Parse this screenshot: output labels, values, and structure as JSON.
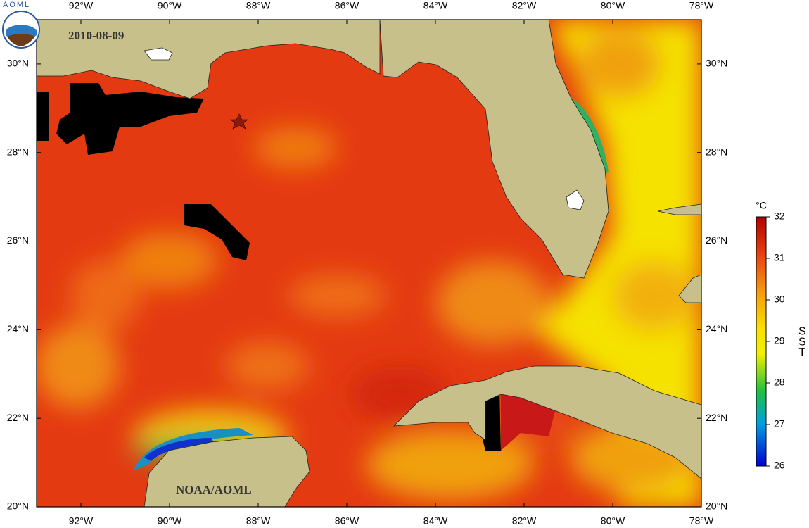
{
  "map": {
    "logo": "AOML",
    "title": "2010-08-09",
    "credit": "NOAA/AOML",
    "xlim": [
      -93,
      -78
    ],
    "ylim": [
      20,
      31
    ],
    "lon_ticks": [
      {
        "value": -92,
        "label": "92°W"
      },
      {
        "value": -90,
        "label": "90°W"
      },
      {
        "value": -88,
        "label": "88°W"
      },
      {
        "value": -86,
        "label": "86°W"
      },
      {
        "value": -84,
        "label": "84°W"
      },
      {
        "value": -82,
        "label": "82°W"
      },
      {
        "value": -80,
        "label": "80°W"
      },
      {
        "value": -78,
        "label": "78°W"
      }
    ],
    "lat_ticks": [
      {
        "value": 20,
        "label": "20°N"
      },
      {
        "value": 22,
        "label": "22°N"
      },
      {
        "value": 24,
        "label": "24°N"
      },
      {
        "value": 26,
        "label": "26°N"
      },
      {
        "value": 28,
        "label": "28°N"
      },
      {
        "value": 30,
        "label": "30°N"
      }
    ],
    "colorbar": {
      "unit": "°C",
      "label": "SST",
      "lim": [
        26,
        32
      ],
      "ticks": [
        26,
        27,
        28,
        29,
        30,
        31,
        32
      ]
    }
  }
}
